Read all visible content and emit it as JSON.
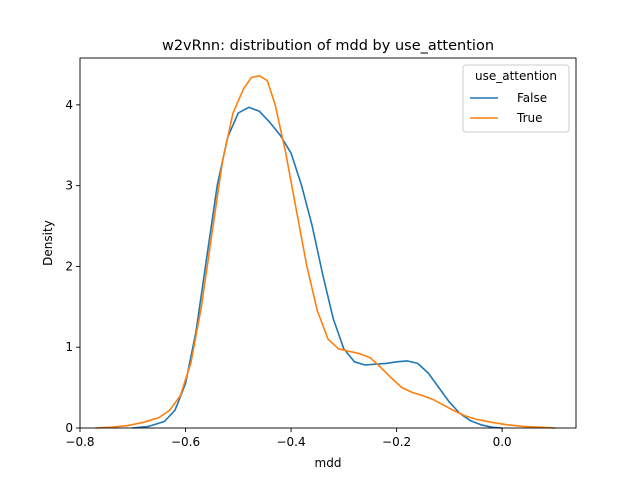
{
  "chart_data": {
    "type": "line",
    "title": "w2vRnn: distribution of mdd by use_attention",
    "xlabel": "mdd",
    "ylabel": "Density",
    "xlim": [
      -0.8,
      0.14
    ],
    "ylim": [
      0,
      4.58
    ],
    "xticks": [
      -0.8,
      -0.6,
      -0.4,
      -0.2,
      0.0
    ],
    "xtick_labels": [
      "−0.8",
      "−0.6",
      "−0.4",
      "−0.2",
      "0.0"
    ],
    "yticks": [
      0,
      1,
      2,
      3,
      4
    ],
    "ytick_labels": [
      "0",
      "1",
      "2",
      "3",
      "4"
    ],
    "grid": false,
    "legend": {
      "title": "use_attention",
      "placement": "top-right"
    },
    "series": [
      {
        "name": "False",
        "color": "#1f77b4",
        "points": [
          [
            -0.7,
            0.0
          ],
          [
            -0.67,
            0.02
          ],
          [
            -0.64,
            0.08
          ],
          [
            -0.62,
            0.22
          ],
          [
            -0.6,
            0.55
          ],
          [
            -0.58,
            1.2
          ],
          [
            -0.56,
            2.1
          ],
          [
            -0.54,
            3.0
          ],
          [
            -0.52,
            3.6
          ],
          [
            -0.5,
            3.9
          ],
          [
            -0.48,
            3.97
          ],
          [
            -0.46,
            3.92
          ],
          [
            -0.44,
            3.78
          ],
          [
            -0.42,
            3.62
          ],
          [
            -0.4,
            3.4
          ],
          [
            -0.38,
            3.0
          ],
          [
            -0.36,
            2.5
          ],
          [
            -0.34,
            1.9
          ],
          [
            -0.32,
            1.35
          ],
          [
            -0.3,
            0.98
          ],
          [
            -0.28,
            0.82
          ],
          [
            -0.26,
            0.78
          ],
          [
            -0.24,
            0.79
          ],
          [
            -0.22,
            0.8
          ],
          [
            -0.2,
            0.82
          ],
          [
            -0.18,
            0.83
          ],
          [
            -0.16,
            0.8
          ],
          [
            -0.14,
            0.68
          ],
          [
            -0.12,
            0.5
          ],
          [
            -0.1,
            0.32
          ],
          [
            -0.08,
            0.18
          ],
          [
            -0.06,
            0.09
          ],
          [
            -0.04,
            0.04
          ],
          [
            -0.02,
            0.01
          ],
          [
            0.0,
            0.0
          ]
        ]
      },
      {
        "name": "True",
        "color": "#ff7f0e",
        "points": [
          [
            -0.77,
            0.0
          ],
          [
            -0.74,
            0.01
          ],
          [
            -0.71,
            0.03
          ],
          [
            -0.68,
            0.07
          ],
          [
            -0.65,
            0.13
          ],
          [
            -0.63,
            0.22
          ],
          [
            -0.61,
            0.4
          ],
          [
            -0.59,
            0.8
          ],
          [
            -0.57,
            1.5
          ],
          [
            -0.55,
            2.4
          ],
          [
            -0.53,
            3.3
          ],
          [
            -0.51,
            3.9
          ],
          [
            -0.49,
            4.2
          ],
          [
            -0.475,
            4.34
          ],
          [
            -0.46,
            4.36
          ],
          [
            -0.445,
            4.3
          ],
          [
            -0.43,
            4.0
          ],
          [
            -0.41,
            3.4
          ],
          [
            -0.39,
            2.7
          ],
          [
            -0.37,
            2.0
          ],
          [
            -0.35,
            1.45
          ],
          [
            -0.33,
            1.1
          ],
          [
            -0.31,
            0.98
          ],
          [
            -0.29,
            0.95
          ],
          [
            -0.27,
            0.92
          ],
          [
            -0.25,
            0.87
          ],
          [
            -0.23,
            0.75
          ],
          [
            -0.21,
            0.62
          ],
          [
            -0.19,
            0.5
          ],
          [
            -0.17,
            0.44
          ],
          [
            -0.15,
            0.4
          ],
          [
            -0.13,
            0.35
          ],
          [
            -0.11,
            0.28
          ],
          [
            -0.09,
            0.21
          ],
          [
            -0.07,
            0.15
          ],
          [
            -0.05,
            0.11
          ],
          [
            -0.02,
            0.07
          ],
          [
            0.01,
            0.04
          ],
          [
            0.04,
            0.02
          ],
          [
            0.07,
            0.01
          ],
          [
            0.1,
            0.0
          ]
        ]
      }
    ]
  }
}
